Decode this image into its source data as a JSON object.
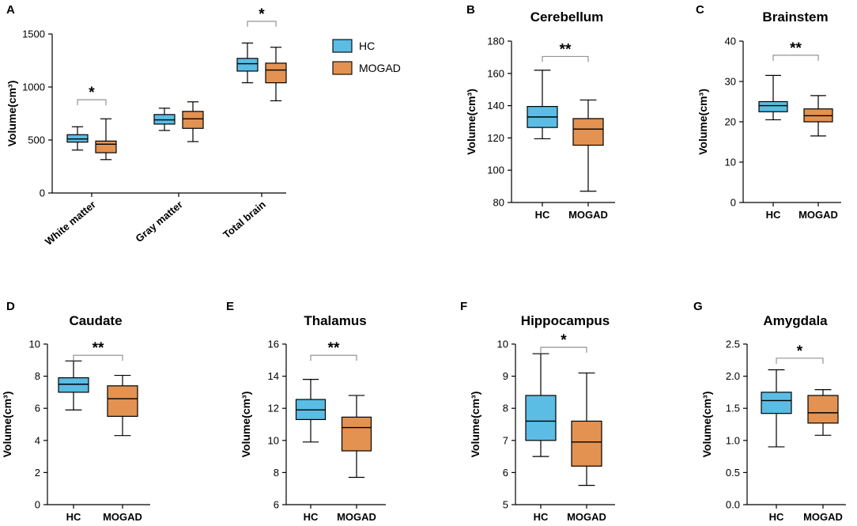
{
  "colors": {
    "HC": "#5bbce4",
    "MOGAD": "#e39251"
  },
  "legend": [
    {
      "label": "HC",
      "color": "#5bbce4"
    },
    {
      "label": "MOGAD",
      "color": "#e39251"
    }
  ],
  "chart_data": [
    {
      "letter": "A",
      "type": "box",
      "title": "",
      "ylabel": "Volume(cm³)",
      "ylim": [
        0,
        1500
      ],
      "yticks": [
        0,
        500,
        1000,
        1500
      ],
      "tick_labels": [
        "0",
        "500",
        "1000",
        "1500"
      ],
      "categories": [
        "White matter",
        "Gray matter",
        "Total brain"
      ],
      "groups": [
        {
          "category": "White matter",
          "series": "HC",
          "min": 405,
          "q1": 480,
          "median": 510,
          "q3": 550,
          "max": 625
        },
        {
          "category": "White matter",
          "series": "MOGAD",
          "min": 315,
          "q1": 380,
          "median": 460,
          "q3": 490,
          "max": 700
        },
        {
          "category": "Gray matter",
          "series": "HC",
          "min": 590,
          "q1": 650,
          "median": 690,
          "q3": 740,
          "max": 800
        },
        {
          "category": "Gray matter",
          "series": "MOGAD",
          "min": 485,
          "q1": 610,
          "median": 700,
          "q3": 770,
          "max": 860
        },
        {
          "category": "Total brain",
          "series": "HC",
          "min": 1040,
          "q1": 1150,
          "median": 1220,
          "q3": 1270,
          "max": 1415
        },
        {
          "category": "Total brain",
          "series": "MOGAD",
          "min": 870,
          "q1": 1040,
          "median": 1160,
          "q3": 1225,
          "max": 1375
        }
      ],
      "significance": [
        {
          "category": "White matter",
          "label": "*",
          "y": 880
        },
        {
          "category": "Total brain",
          "label": "*",
          "y": 1620
        }
      ]
    },
    {
      "letter": "B",
      "type": "box",
      "title": "Cerebellum",
      "ylabel": "Volume(cm³)",
      "ylim": [
        80,
        180
      ],
      "yticks": [
        80,
        100,
        120,
        140,
        160,
        180
      ],
      "tick_labels": [
        "80",
        "100",
        "120",
        "140",
        "160",
        "180"
      ],
      "categories": [
        "HC",
        "MOGAD"
      ],
      "groups": [
        {
          "series": "HC",
          "min": 119.5,
          "q1": 126.5,
          "median": 133,
          "q3": 139.5,
          "max": 162
        },
        {
          "series": "MOGAD",
          "min": 87,
          "q1": 115.5,
          "median": 125.5,
          "q3": 132,
          "max": 143.5
        }
      ],
      "significance": [
        {
          "label": "**",
          "y": 170.5
        }
      ]
    },
    {
      "letter": "C",
      "type": "box",
      "title": "Brainstem",
      "ylabel": "Volume(cm³)",
      "ylim": [
        0,
        40
      ],
      "yticks": [
        0,
        10,
        20,
        30,
        40
      ],
      "tick_labels": [
        "0",
        "10",
        "20",
        "30",
        "40"
      ],
      "categories": [
        "HC",
        "MOGAD"
      ],
      "groups": [
        {
          "series": "HC",
          "min": 20.5,
          "q1": 22.5,
          "median": 24,
          "q3": 25,
          "max": 31.5
        },
        {
          "series": "MOGAD",
          "min": 16.5,
          "q1": 20,
          "median": 21.5,
          "q3": 23.2,
          "max": 26.5
        }
      ],
      "significance": [
        {
          "label": "**",
          "y": 36.5
        }
      ]
    },
    {
      "letter": "D",
      "type": "box",
      "title": "Caudate",
      "ylabel": "Volume(cm³)",
      "ylim": [
        0,
        10
      ],
      "yticks": [
        0,
        2,
        4,
        6,
        8,
        10
      ],
      "tick_labels": [
        "0",
        "2",
        "4",
        "6",
        "8",
        "10"
      ],
      "categories": [
        "HC",
        "MOGAD"
      ],
      "groups": [
        {
          "series": "HC",
          "min": 5.9,
          "q1": 7.0,
          "median": 7.5,
          "q3": 7.9,
          "max": 8.95
        },
        {
          "series": "MOGAD",
          "min": 4.3,
          "q1": 5.5,
          "median": 6.6,
          "q3": 7.4,
          "max": 8.05
        }
      ],
      "significance": [
        {
          "label": "**",
          "y": 9.3
        }
      ]
    },
    {
      "letter": "E",
      "type": "box",
      "title": "Thalamus",
      "ylabel": "Volume(cm³)",
      "ylim": [
        6,
        16
      ],
      "yticks": [
        6,
        8,
        10,
        12,
        14,
        16
      ],
      "tick_labels": [
        "6",
        "8",
        "10",
        "12",
        "14",
        "16"
      ],
      "categories": [
        "HC",
        "MOGAD"
      ],
      "groups": [
        {
          "series": "HC",
          "min": 9.9,
          "q1": 11.3,
          "median": 11.9,
          "q3": 12.55,
          "max": 13.8
        },
        {
          "series": "MOGAD",
          "min": 7.7,
          "q1": 9.35,
          "median": 10.8,
          "q3": 11.45,
          "max": 12.8
        }
      ],
      "significance": [
        {
          "label": "**",
          "y": 15.3
        }
      ]
    },
    {
      "letter": "F",
      "type": "box",
      "title": "Hippocampus",
      "ylabel": "Volume(cm³)",
      "ylim": [
        5,
        10
      ],
      "yticks": [
        5,
        6,
        7,
        8,
        9,
        10
      ],
      "tick_labels": [
        "5",
        "6",
        "7",
        "8",
        "9",
        "10"
      ],
      "categories": [
        "HC",
        "MOGAD"
      ],
      "groups": [
        {
          "series": "HC",
          "min": 6.5,
          "q1": 7.0,
          "median": 7.6,
          "q3": 8.4,
          "max": 9.7
        },
        {
          "series": "MOGAD",
          "min": 5.6,
          "q1": 6.2,
          "median": 6.95,
          "q3": 7.6,
          "max": 9.1
        }
      ],
      "significance": [
        {
          "label": "*",
          "y": 9.9
        }
      ]
    },
    {
      "letter": "G",
      "type": "box",
      "title": "Amygdala",
      "ylabel": "Volume(cm³)",
      "ylim": [
        0,
        2.5
      ],
      "yticks": [
        0,
        0.5,
        1.0,
        1.5,
        2.0,
        2.5
      ],
      "tick_labels": [
        "0.0",
        "0.5",
        "1.0",
        "1.5",
        "2.0",
        "2.5"
      ],
      "categories": [
        "HC",
        "MOGAD"
      ],
      "groups": [
        {
          "series": "HC",
          "min": 0.9,
          "q1": 1.42,
          "median": 1.62,
          "q3": 1.75,
          "max": 2.1
        },
        {
          "series": "MOGAD",
          "min": 1.08,
          "q1": 1.27,
          "median": 1.43,
          "q3": 1.7,
          "max": 1.79
        }
      ],
      "significance": [
        {
          "label": "*",
          "y": 2.28
        }
      ]
    }
  ]
}
